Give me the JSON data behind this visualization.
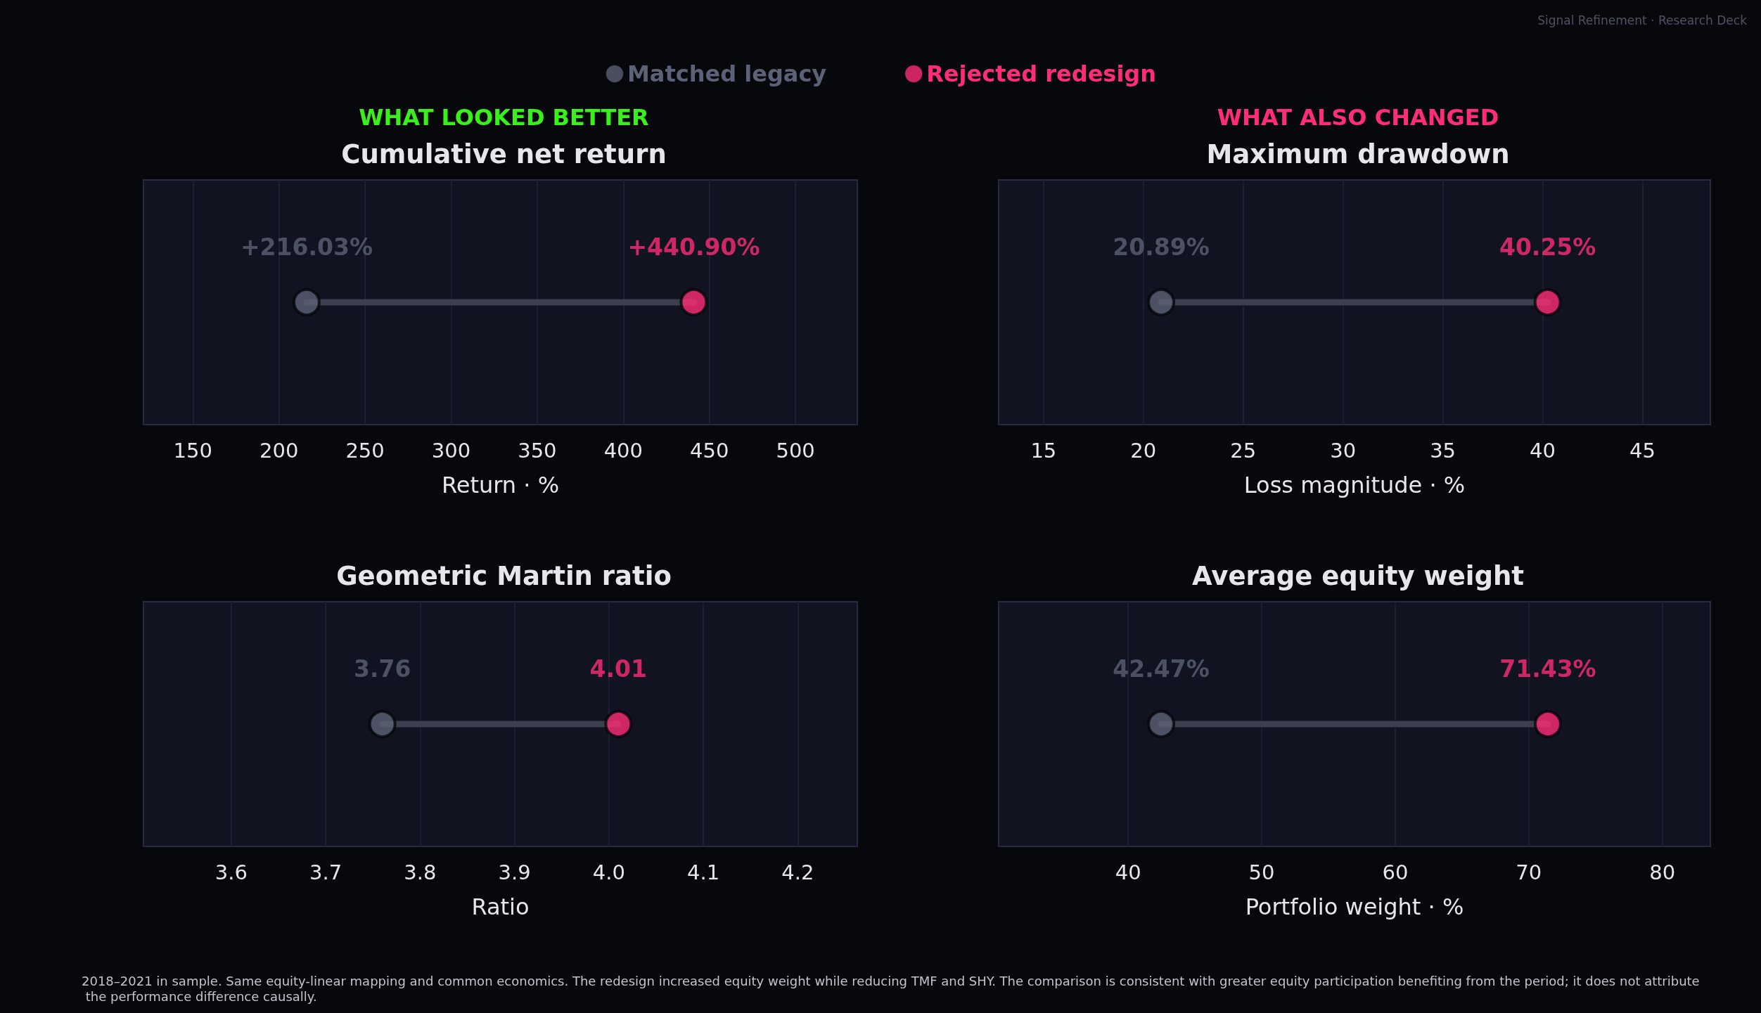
{
  "chart_data": [
    {
      "type": "scatter",
      "orientation": "horizontal",
      "subtitle": "WHAT LOOKED BETTER",
      "title": "Cumulative net return",
      "xlabel": "Return · %",
      "categories": [
        null
      ],
      "xlim": [
        121.3,
        535.9
      ],
      "xticks": [
        150,
        200,
        250,
        300,
        350,
        400,
        450,
        500
      ],
      "tick_labels": "x",
      "grid": "x",
      "marker": "circle",
      "legend": "top",
      "annotations": [
        "Signal Refinement · Research Deck",
        "2018–2021 in sample. Same equity-linear mapping and common economics. The redesign increased equity weight while reducing TMF and SHY. The comparison is consistent with greater equity participation benefiting from the period; it does not attribute the performance difference causally."
      ],
      "series": [
        {
          "name": "Matched legacy",
          "color": "#5b6176",
          "values": [
            216.03
          ],
          "value_labels": [
            "+216.03%"
          ]
        },
        {
          "name": "Rejected redesign",
          "color": "#ff2d78",
          "values": [
            440.9
          ],
          "value_labels": [
            "+440.90%"
          ]
        }
      ]
    },
    {
      "type": "scatter",
      "orientation": "horizontal",
      "subtitle": "WHAT ALSO CHANGED",
      "title": "Maximum drawdown",
      "xlabel": "Loss magnitude · %",
      "categories": [
        null
      ],
      "xlim": [
        12.75,
        48.4
      ],
      "xticks": [
        15,
        20,
        25,
        30,
        35,
        40,
        45
      ],
      "tick_labels": "x",
      "grid": "x",
      "marker": "circle",
      "series": [
        {
          "color": "#5b6176",
          "values": [
            20.89
          ],
          "value_labels": [
            "20.89%"
          ]
        },
        {
          "color": "#ff2d78",
          "values": [
            40.25
          ],
          "value_labels": [
            "40.25%"
          ]
        }
      ]
    },
    {
      "type": "scatter",
      "orientation": "horizontal",
      "title": "Geometric Martin ratio",
      "xlabel": "Ratio",
      "categories": [
        null
      ],
      "xlim": [
        3.507,
        4.263
      ],
      "xticks": [
        3.6,
        3.7,
        3.8,
        3.9,
        {
          "value": 4.0,
          "label": "4.0"
        },
        4.1,
        4.2
      ],
      "tick_labels": "x",
      "grid": "x",
      "marker": "circle",
      "series": [
        {
          "color": "#5b6176",
          "values": [
            3.76
          ],
          "value_labels": [
            "3.76"
          ]
        },
        {
          "color": "#ff2d78",
          "values": [
            4.01
          ],
          "value_labels": [
            "4.01"
          ]
        }
      ]
    },
    {
      "type": "scatter",
      "orientation": "horizontal",
      "title": "Average equity weight",
      "xlabel": "Portfolio weight · %",
      "categories": [
        null
      ],
      "xlim": [
        30.3,
        83.6
      ],
      "xticks": [
        40,
        50,
        60,
        70,
        80
      ],
      "tick_labels": "x",
      "grid": "x",
      "marker": "circle",
      "series": [
        {
          "color": "#5b6176",
          "values": [
            42.47
          ],
          "value_labels": [
            "42.47%"
          ]
        },
        {
          "color": "#ff2d78",
          "values": [
            71.43
          ],
          "value_labels": [
            "71.43%"
          ]
        }
      ]
    }
  ]
}
